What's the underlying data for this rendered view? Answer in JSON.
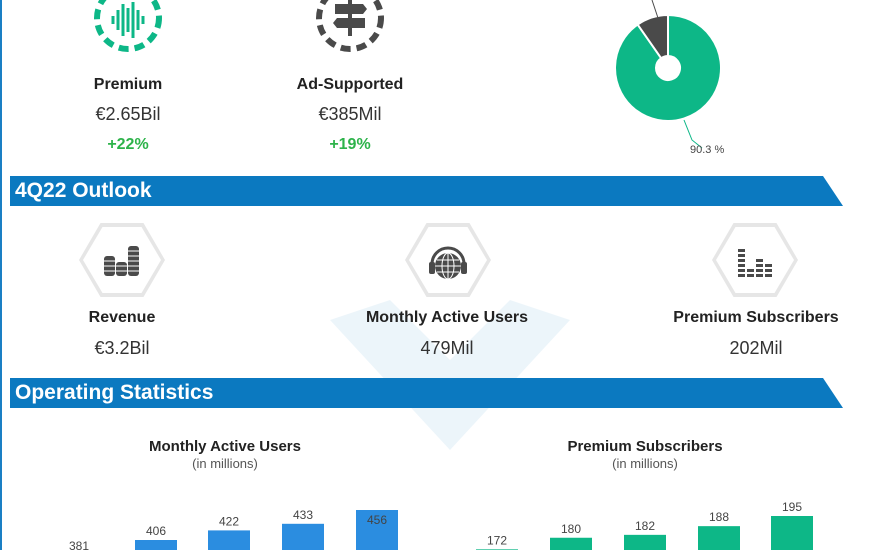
{
  "revenue_split": {
    "items": [
      {
        "label": "Premium",
        "value": "€2.65Bil",
        "growth": "+22%",
        "icon": "sound-wave-icon"
      },
      {
        "label": "Ad-Supported",
        "value": "€385Mil",
        "growth": "+19%",
        "icon": "signpost-icon"
      }
    ]
  },
  "outlook": {
    "title": "4Q22 Outlook",
    "items": [
      {
        "label": "Revenue",
        "value": "€3.2Bil",
        "icon": "coin-stacks-icon"
      },
      {
        "label": "Monthly Active Users",
        "value": "479Mil",
        "icon": "globe-headphones-icon"
      },
      {
        "label": "Premium Subscribers",
        "value": "202Mil",
        "icon": "equalizer-icon"
      }
    ]
  },
  "operating": {
    "title": "Operating Statistics"
  },
  "colors": {
    "blue": "#0b79c0",
    "bar_blue": "#2b8de0",
    "green": "#0db787",
    "dark": "#4a4a4a",
    "growth": "#2db34a"
  },
  "chart_data": [
    {
      "type": "pie",
      "slices": [
        {
          "value": 90.3,
          "label": "90.3 %",
          "color": "#0db787"
        },
        {
          "value": 9.7,
          "color": "#4a4a4a"
        }
      ],
      "donut": true
    },
    {
      "type": "bar",
      "title": "Monthly Active Users",
      "subtitle": "(in millions)",
      "values": [
        381,
        406,
        422,
        433,
        456
      ],
      "labels": [
        "381",
        "406",
        "422",
        "433",
        "456"
      ],
      "color": "#2b8de0"
    },
    {
      "type": "bar",
      "title": "Premium Subscribers",
      "subtitle": "(in millions)",
      "values": [
        172,
        180,
        182,
        188,
        195
      ],
      "labels": [
        "172",
        "180",
        "182",
        "188",
        "195"
      ],
      "color": "#0db787"
    }
  ]
}
